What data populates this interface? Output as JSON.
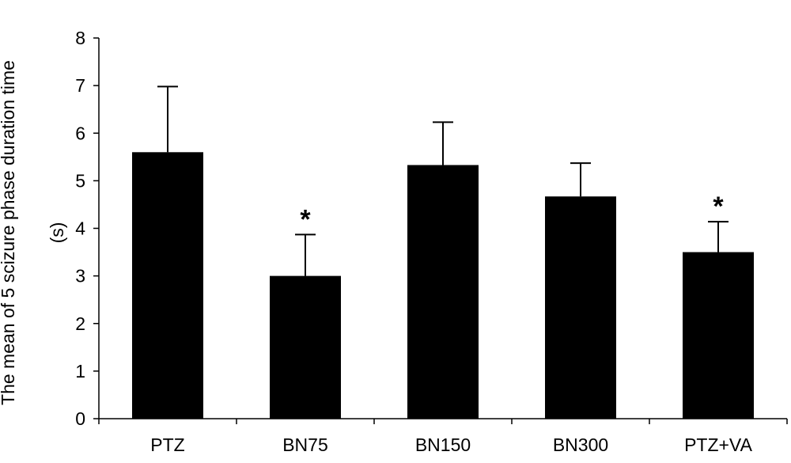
{
  "chart_data": {
    "type": "bar",
    "title": "",
    "xlabel": "",
    "ylabel_line1": "The mean of 5 scizure phase duration time",
    "ylabel_line2": "(s)",
    "ylim": [
      0,
      8
    ],
    "yticks": [
      "0",
      "1",
      "2",
      "3",
      "4",
      "5",
      "6",
      "7",
      "8"
    ],
    "categories": [
      "PTZ",
      "BN75",
      "BN150",
      "BN300",
      "PTZ+VA"
    ],
    "values": [
      5.6,
      3.0,
      5.33,
      4.67,
      3.5
    ],
    "error_upper": [
      1.38,
      0.87,
      0.9,
      0.7,
      0.64
    ],
    "annotations": [
      "",
      "*",
      "",
      "",
      "*"
    ],
    "bar_color": "#000000",
    "grid": false,
    "legend": "none"
  }
}
